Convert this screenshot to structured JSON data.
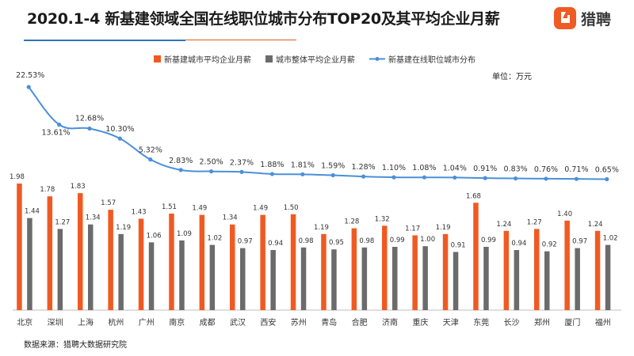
{
  "title": "2020.1-4 新基建领域全国在线职位城市分布TOP20及其平均企业月薪",
  "brand": {
    "name": "猎聘",
    "icon": "liepin-logo-icon",
    "color": "#ef5b24"
  },
  "unit": "单位：万元",
  "source": "数据来源：猎聘大数据研究院",
  "colors": {
    "series1": "#f05a22",
    "series2": "#6b6b6b",
    "series3": "#4a90d9"
  },
  "chart_data": {
    "type": "bar",
    "categories": [
      "北京",
      "深圳",
      "上海",
      "杭州",
      "广州",
      "南京",
      "成都",
      "武汉",
      "西安",
      "苏州",
      "青岛",
      "合肥",
      "济南",
      "重庆",
      "天津",
      "东莞",
      "长沙",
      "郑州",
      "厦门",
      "福州"
    ],
    "series": [
      {
        "name": "新基建城市平均企业月薪",
        "type": "bar",
        "values": [
          1.98,
          1.78,
          1.83,
          1.57,
          1.43,
          1.51,
          1.49,
          1.34,
          1.49,
          1.5,
          1.19,
          1.28,
          1.32,
          1.17,
          1.19,
          1.68,
          1.24,
          1.27,
          1.4,
          1.24
        ]
      },
      {
        "name": "城市整体平均企业月薪",
        "type": "bar",
        "values": [
          1.44,
          1.27,
          1.34,
          1.19,
          1.06,
          1.09,
          1.02,
          0.97,
          0.94,
          0.98,
          0.95,
          0.98,
          0.99,
          1.0,
          0.91,
          0.99,
          0.94,
          0.92,
          0.97,
          1.02
        ]
      },
      {
        "name": "新基建在线职位城市分布",
        "type": "line",
        "values": [
          22.53,
          13.61,
          12.68,
          10.3,
          5.32,
          2.83,
          2.5,
          2.37,
          1.88,
          1.81,
          1.59,
          1.28,
          1.1,
          1.08,
          1.04,
          0.91,
          0.83,
          0.76,
          0.71,
          0.65
        ],
        "labels": [
          "22.53%",
          "13.61%",
          "12.68%",
          "10.30%",
          "5.32%",
          "2.83%",
          "2.50%",
          "2.37%",
          "1.88%",
          "1.81%",
          "1.59%",
          "1.28%",
          "1.10%",
          "1.08%",
          "1.04%",
          "0.91%",
          "0.83%",
          "0.76%",
          "0.71%",
          "0.65%"
        ]
      }
    ],
    "bar_labels": {
      "s1": [
        "1.98",
        "1.78",
        "1.83",
        "1.57",
        "1.43",
        "1.51",
        "1.49",
        "1.34",
        "1.49",
        "1.50",
        "1.19",
        "1.28",
        "1.32",
        "1.17",
        "1.19",
        "1.68",
        "1.24",
        "1.27",
        "1.40",
        "1.24"
      ],
      "s2": [
        "1.44",
        "1.27",
        "1.34",
        "1.19",
        "1.06",
        "1.09",
        "1.02",
        "0.97",
        "0.94",
        "0.98",
        "0.95",
        "0.98",
        "0.99",
        "1.00",
        "0.91",
        "0.99",
        "0.94",
        "0.92",
        "0.97",
        "1.02"
      ]
    },
    "bar_ylim": [
      0,
      2.5
    ],
    "line_ylim": [
      0,
      25
    ],
    "legend_position": "top-center",
    "grid": false
  }
}
